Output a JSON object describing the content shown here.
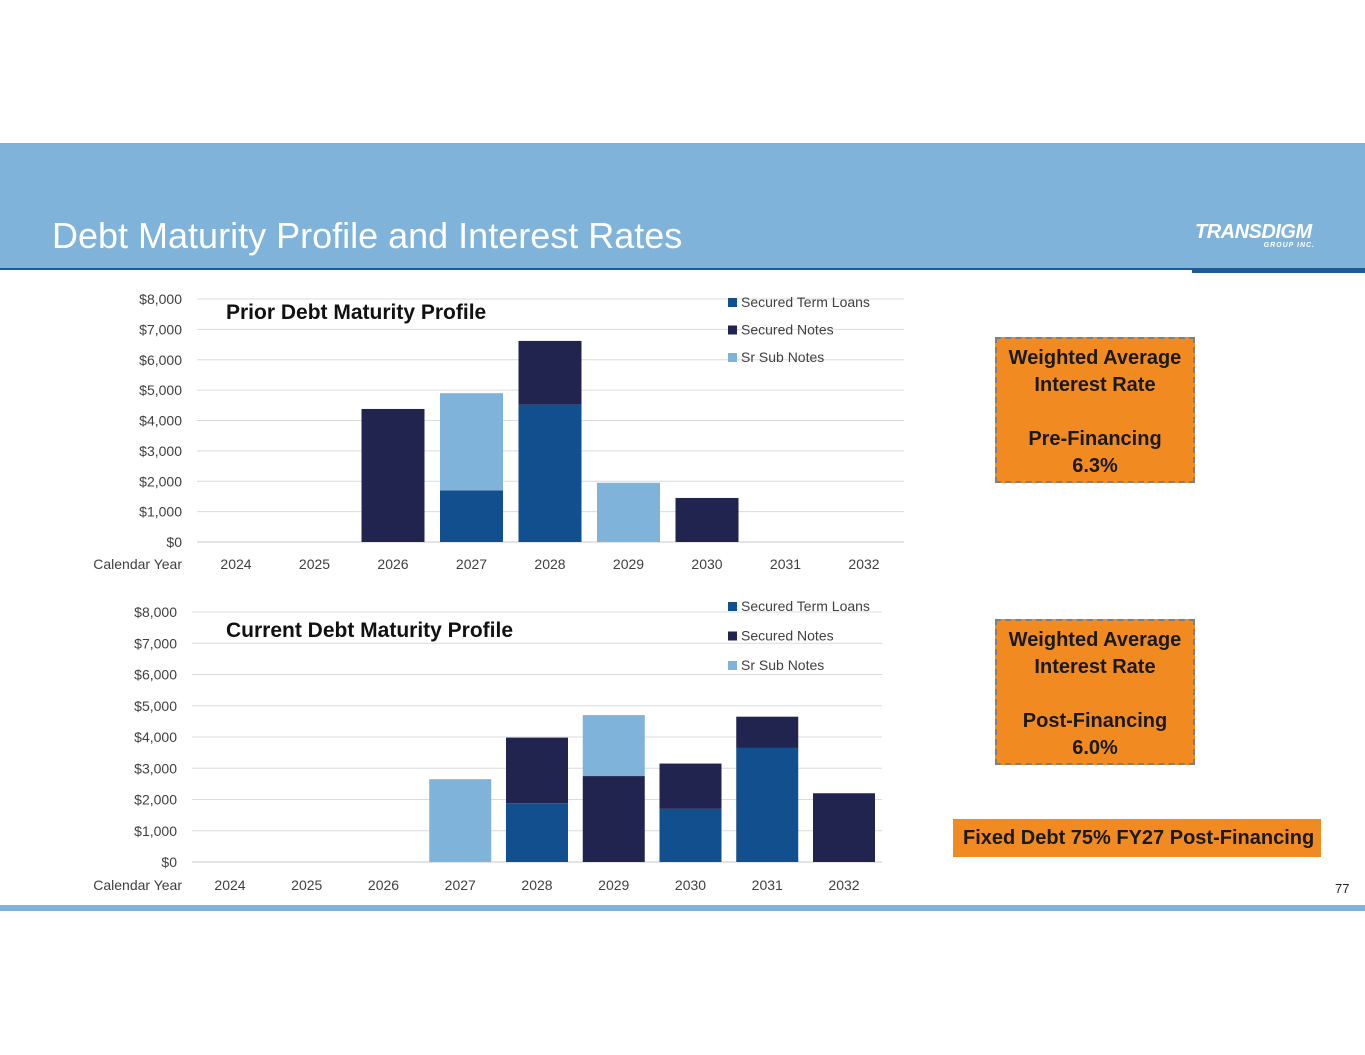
{
  "page": {
    "title": "Debt Maturity Profile and Interest Rates",
    "logo_main": "TRANSDIGM",
    "logo_sub": "GROUP INC.",
    "page_number": "77",
    "colors": {
      "header_band": "#7fb3d9",
      "header_rule": "#1f5a96",
      "accent_orange": "#f28a22"
    }
  },
  "chart_data": [
    {
      "id": "prior",
      "type": "bar",
      "stacked": true,
      "title": "Prior Debt Maturity Profile",
      "xlabel": "Calendar Year",
      "ylabel": "",
      "categories": [
        "2024",
        "2025",
        "2026",
        "2027",
        "2028",
        "2029",
        "2030",
        "2031",
        "2032"
      ],
      "series": [
        {
          "name": "Secured Term Loans",
          "color": "#124f8f",
          "values": [
            0,
            0,
            0,
            1700,
            4520,
            0,
            0,
            0,
            0
          ]
        },
        {
          "name": "Secured Notes",
          "color": "#20244f",
          "values": [
            0,
            0,
            4380,
            0,
            2100,
            0,
            1450,
            0,
            0
          ]
        },
        {
          "name": "Sr Sub Notes",
          "color": "#7fb3d9",
          "values": [
            0,
            0,
            0,
            3200,
            0,
            1950,
            0,
            0,
            0
          ]
        }
      ],
      "ylim": [
        0,
        8000
      ],
      "yticks": [
        0,
        1000,
        2000,
        3000,
        4000,
        5000,
        6000,
        7000,
        8000
      ],
      "ytick_labels": [
        "$0",
        "$1,000",
        "$2,000",
        "$3,000",
        "$4,000",
        "$5,000",
        "$6,000",
        "$7,000",
        "$8,000"
      ],
      "grid": true,
      "legend": "top-right"
    },
    {
      "id": "current",
      "type": "bar",
      "stacked": true,
      "title": "Current Debt Maturity Profile",
      "xlabel": "Calendar Year",
      "ylabel": "",
      "categories": [
        "2024",
        "2025",
        "2026",
        "2027",
        "2028",
        "2029",
        "2030",
        "2031",
        "2032"
      ],
      "series": [
        {
          "name": "Secured Term Loans",
          "color": "#124f8f",
          "values": [
            0,
            0,
            0,
            0,
            1880,
            0,
            1700,
            3650,
            0
          ]
        },
        {
          "name": "Secured Notes",
          "color": "#20244f",
          "values": [
            0,
            0,
            0,
            0,
            2100,
            2750,
            1450,
            1000,
            2200
          ]
        },
        {
          "name": "Sr Sub Notes",
          "color": "#7fb3d9",
          "values": [
            0,
            0,
            0,
            2650,
            0,
            1950,
            0,
            0,
            0
          ]
        }
      ],
      "ylim": [
        0,
        8000
      ],
      "yticks": [
        0,
        1000,
        2000,
        3000,
        4000,
        5000,
        6000,
        7000,
        8000
      ],
      "ytick_labels": [
        "$0",
        "$1,000",
        "$2,000",
        "$3,000",
        "$4,000",
        "$5,000",
        "$6,000",
        "$7,000",
        "$8,000"
      ],
      "grid": true,
      "legend": "top-right"
    }
  ],
  "rate_boxes": {
    "pre": {
      "line1": "Weighted Average",
      "line2": "Interest Rate",
      "line3": "Pre-Financing",
      "value": "6.3%"
    },
    "post": {
      "line1": "Weighted Average",
      "line2": "Interest Rate",
      "line3": "Post-Financing",
      "value": "6.0%"
    }
  },
  "fixed_debt_note": "Fixed Debt 75% FY27 Post-Financing"
}
